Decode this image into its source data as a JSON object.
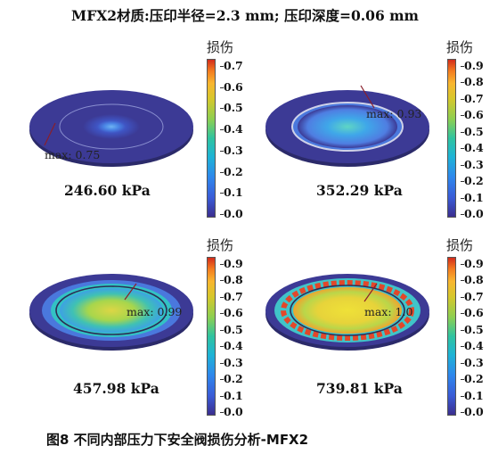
{
  "title": "MFX2材质:压印半径=2.3 mm; 压印深度=0.06 mm",
  "caption": "图8    不同内部压力下安全阀损伤分析-MFX2",
  "colorbar_title": "损伤",
  "panels": [
    {
      "pressure": "246.60 kPa",
      "max_label": "max: 0.75",
      "max": 0.75,
      "ticks": [
        "0.7",
        "0.6",
        "0.5",
        "0.4",
        "0.3",
        "0.2",
        "0.1",
        "0.0"
      ]
    },
    {
      "pressure": "352.29 kPa",
      "max_label": "max: 0.93",
      "max": 0.93,
      "ticks": [
        "0.9",
        "0.8",
        "0.7",
        "0.6",
        "0.5",
        "0.4",
        "0.3",
        "0.2",
        "0.1",
        "0.0"
      ]
    },
    {
      "pressure": "457.98 kPa",
      "max_label": "max: 0.99",
      "max": 0.99,
      "ticks": [
        "0.9",
        "0.8",
        "0.7",
        "0.6",
        "0.5",
        "0.4",
        "0.3",
        "0.2",
        "0.1",
        "0.0"
      ]
    },
    {
      "pressure": "739.81 kPa",
      "max_label": "max: 1.0",
      "max": 1.0,
      "ticks": [
        "0.9",
        "0.8",
        "0.7",
        "0.6",
        "0.5",
        "0.4",
        "0.3",
        "0.2",
        "0.1",
        "0.0"
      ]
    }
  ],
  "colors": {
    "plate_base": "#3c3a95",
    "ring_warm": "#e2472a",
    "center_low": "#6ea7f0",
    "center_mid": "#d9d94a",
    "arrow": "#8a1f2a"
  }
}
